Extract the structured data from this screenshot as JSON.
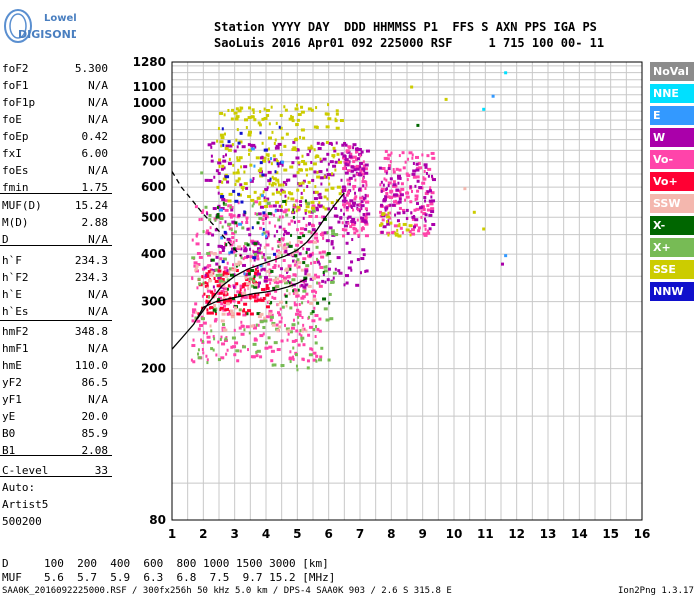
{
  "logo": {
    "line1": "Lowell",
    "line2": "DIGISONDE"
  },
  "header": {
    "line1": "Station YYYY DAY  DDD HHMMSS P1  FFS S AXN PPS IGA PS",
    "line2": "SaoLuis 2016 Apr01 092 225000 RSF     1 715 100 00- 11"
  },
  "params": [
    {
      "name": "foF2",
      "value": "5.300"
    },
    {
      "name": "foF1",
      "value": "N/A"
    },
    {
      "name": "foF1p",
      "value": "N/A"
    },
    {
      "name": "foE",
      "value": "N/A"
    },
    {
      "name": "foEp",
      "value": "0.42"
    },
    {
      "name": "fxI",
      "value": "6.00"
    },
    {
      "name": "foEs",
      "value": "N/A"
    },
    {
      "name": "fmin",
      "value": "1.75"
    },
    {
      "name": "MUF(D)",
      "value": "15.24"
    },
    {
      "name": "M(D)",
      "value": "2.88"
    },
    {
      "name": "D",
      "value": "N/A"
    },
    {
      "name": "h`F",
      "value": "234.3"
    },
    {
      "name": "h`F2",
      "value": "234.3"
    },
    {
      "name": "h`E",
      "value": "N/A"
    },
    {
      "name": "h`Es",
      "value": "N/A"
    },
    {
      "name": "hmF2",
      "value": "348.8"
    },
    {
      "name": "hmF1",
      "value": "N/A"
    },
    {
      "name": "hmE",
      "value": "110.0"
    },
    {
      "name": "yF2",
      "value": "86.5"
    },
    {
      "name": "yF1",
      "value": "N/A"
    },
    {
      "name": "yE",
      "value": "20.0"
    },
    {
      "name": "B0",
      "value": "85.9"
    },
    {
      "name": "B1",
      "value": "2.08"
    },
    {
      "name": "C-level",
      "value": "33"
    }
  ],
  "autoscaling": {
    "line1": "Auto:",
    "line2": "Artist5",
    "line3": "500200"
  },
  "legend": [
    {
      "label": "NoVal",
      "color": "#8c8c8c"
    },
    {
      "label": "NNE",
      "color": "#00e0ff"
    },
    {
      "label": "E",
      "color": "#3399ff"
    },
    {
      "label": "W",
      "color": "#aa00aa"
    },
    {
      "label": "Vo-",
      "color": "#ff44aa"
    },
    {
      "label": "Vo+",
      "color": "#ff0033"
    },
    {
      "label": "SSW",
      "color": "#f4b7ae"
    },
    {
      "label": "X-",
      "color": "#006600"
    },
    {
      "label": "X+",
      "color": "#77bb55"
    },
    {
      "label": "SSE",
      "color": "#cccc00"
    },
    {
      "label": "NNW",
      "color": "#1010cc"
    }
  ],
  "muf_table": {
    "d_label": "D",
    "d_values": "100  200  400  600  800 1000 1500 3000 [km]",
    "muf_label": "MUF",
    "muf_values": "5.6  5.7  5.9  6.3  6.8  7.5  9.7 15.2 [MHz]"
  },
  "footer": {
    "left": "SAA0K_2016092225000.RSF / 300fx256h 50 kHz 5.0 km / DPS-4 SAA0K 903 / 2.6 S 315.8 E",
    "right": "Ion2Png 1.3.17"
  },
  "chart_data": {
    "type": "scatter",
    "xlabel": "",
    "ylabel": "",
    "xlim": [
      1,
      16
    ],
    "ylim": [
      80,
      1280
    ],
    "yscale": "log",
    "x_ticks": [
      1,
      2,
      3,
      4,
      5,
      6,
      7,
      8,
      9,
      10,
      11,
      12,
      13,
      14,
      15,
      16
    ],
    "y_ticks": [
      80,
      200,
      300,
      400,
      500,
      600,
      700,
      800,
      900,
      1000,
      1100,
      1280
    ],
    "grid": true,
    "legend_placement": "right",
    "clusters": [
      {
        "series": "Vo-",
        "x": [
          1.6,
          5.8
        ],
        "y": [
          210,
          560
        ],
        "count": 420
      },
      {
        "series": "Vo+",
        "x": [
          1.8,
          4.0
        ],
        "y": [
          280,
          370
        ],
        "count": 120
      },
      {
        "series": "W",
        "x": [
          2.0,
          7.2
        ],
        "y": [
          330,
          800
        ],
        "count": 320
      },
      {
        "series": "SSE",
        "x": [
          2.4,
          6.4
        ],
        "y": [
          520,
          1000
        ],
        "count": 240
      },
      {
        "series": "X+",
        "x": [
          1.6,
          6.2
        ],
        "y": [
          200,
          550
        ],
        "count": 150
      },
      {
        "series": "X-",
        "x": [
          2.2,
          6.0
        ],
        "y": [
          280,
          560
        ],
        "count": 60
      },
      {
        "series": "SSW",
        "x": [
          1.7,
          5.5
        ],
        "y": [
          250,
          450
        ],
        "count": 90
      },
      {
        "series": "NNW",
        "x": [
          2.5,
          4.5
        ],
        "y": [
          380,
          880
        ],
        "count": 30
      },
      {
        "series": "E",
        "x": [
          2.5,
          5.0
        ],
        "y": [
          350,
          800
        ],
        "count": 15
      },
      {
        "series": "Vo-",
        "x": [
          6.4,
          7.2
        ],
        "y": [
          450,
          780
        ],
        "count": 90
      },
      {
        "series": "W",
        "x": [
          6.4,
          7.2
        ],
        "y": [
          480,
          800
        ],
        "count": 60
      },
      {
        "series": "Vo-",
        "x": [
          7.6,
          9.3
        ],
        "y": [
          450,
          760
        ],
        "count": 140
      },
      {
        "series": "W",
        "x": [
          7.6,
          9.3
        ],
        "y": [
          460,
          700
        ],
        "count": 80
      },
      {
        "series": "SSE",
        "x": [
          7.6,
          8.6
        ],
        "y": [
          450,
          520
        ],
        "count": 20
      }
    ],
    "scattered_points": [
      {
        "series": "NNE",
        "x": 11.6,
        "y": 1210
      },
      {
        "series": "E",
        "x": 11.2,
        "y": 1050
      },
      {
        "series": "NNE",
        "x": 10.9,
        "y": 970
      },
      {
        "series": "E",
        "x": 11.6,
        "y": 400
      },
      {
        "series": "SSE",
        "x": 10.6,
        "y": 520
      },
      {
        "series": "SSE",
        "x": 10.9,
        "y": 470
      },
      {
        "series": "X-",
        "x": 8.8,
        "y": 880
      },
      {
        "series": "SSE",
        "x": 8.6,
        "y": 1110
      },
      {
        "series": "W",
        "x": 11.5,
        "y": 380
      },
      {
        "series": "SSW",
        "x": 10.3,
        "y": 600
      },
      {
        "series": "SSE",
        "x": 9.7,
        "y": 1030
      },
      {
        "series": "X+",
        "x": 1.9,
        "y": 660
      }
    ],
    "trace_curve": {
      "x": [
        1.0,
        1.3,
        1.7,
        2.0,
        2.4,
        2.8,
        3.2,
        3.6,
        4.0,
        4.4,
        4.7,
        5.0,
        5.3
      ],
      "y": [
        225,
        240,
        262,
        290,
        300,
        305,
        310,
        315,
        318,
        323,
        328,
        335,
        345
      ]
    },
    "profile_curve": {
      "x": [
        1.8,
        2.2,
        2.6,
        3.0,
        3.4,
        3.8,
        4.2,
        4.6,
        5.0,
        5.3,
        5.6,
        5.9,
        6.2,
        6.5
      ],
      "y": [
        270,
        300,
        330,
        350,
        365,
        375,
        385,
        395,
        410,
        430,
        460,
        500,
        540,
        580
      ]
    },
    "dashed_curve": {
      "x": [
        1.0,
        1.3,
        1.6,
        2.0,
        2.4,
        2.8,
        3.2
      ],
      "y": [
        660,
        600,
        560,
        510,
        470,
        430,
        395
      ]
    }
  }
}
